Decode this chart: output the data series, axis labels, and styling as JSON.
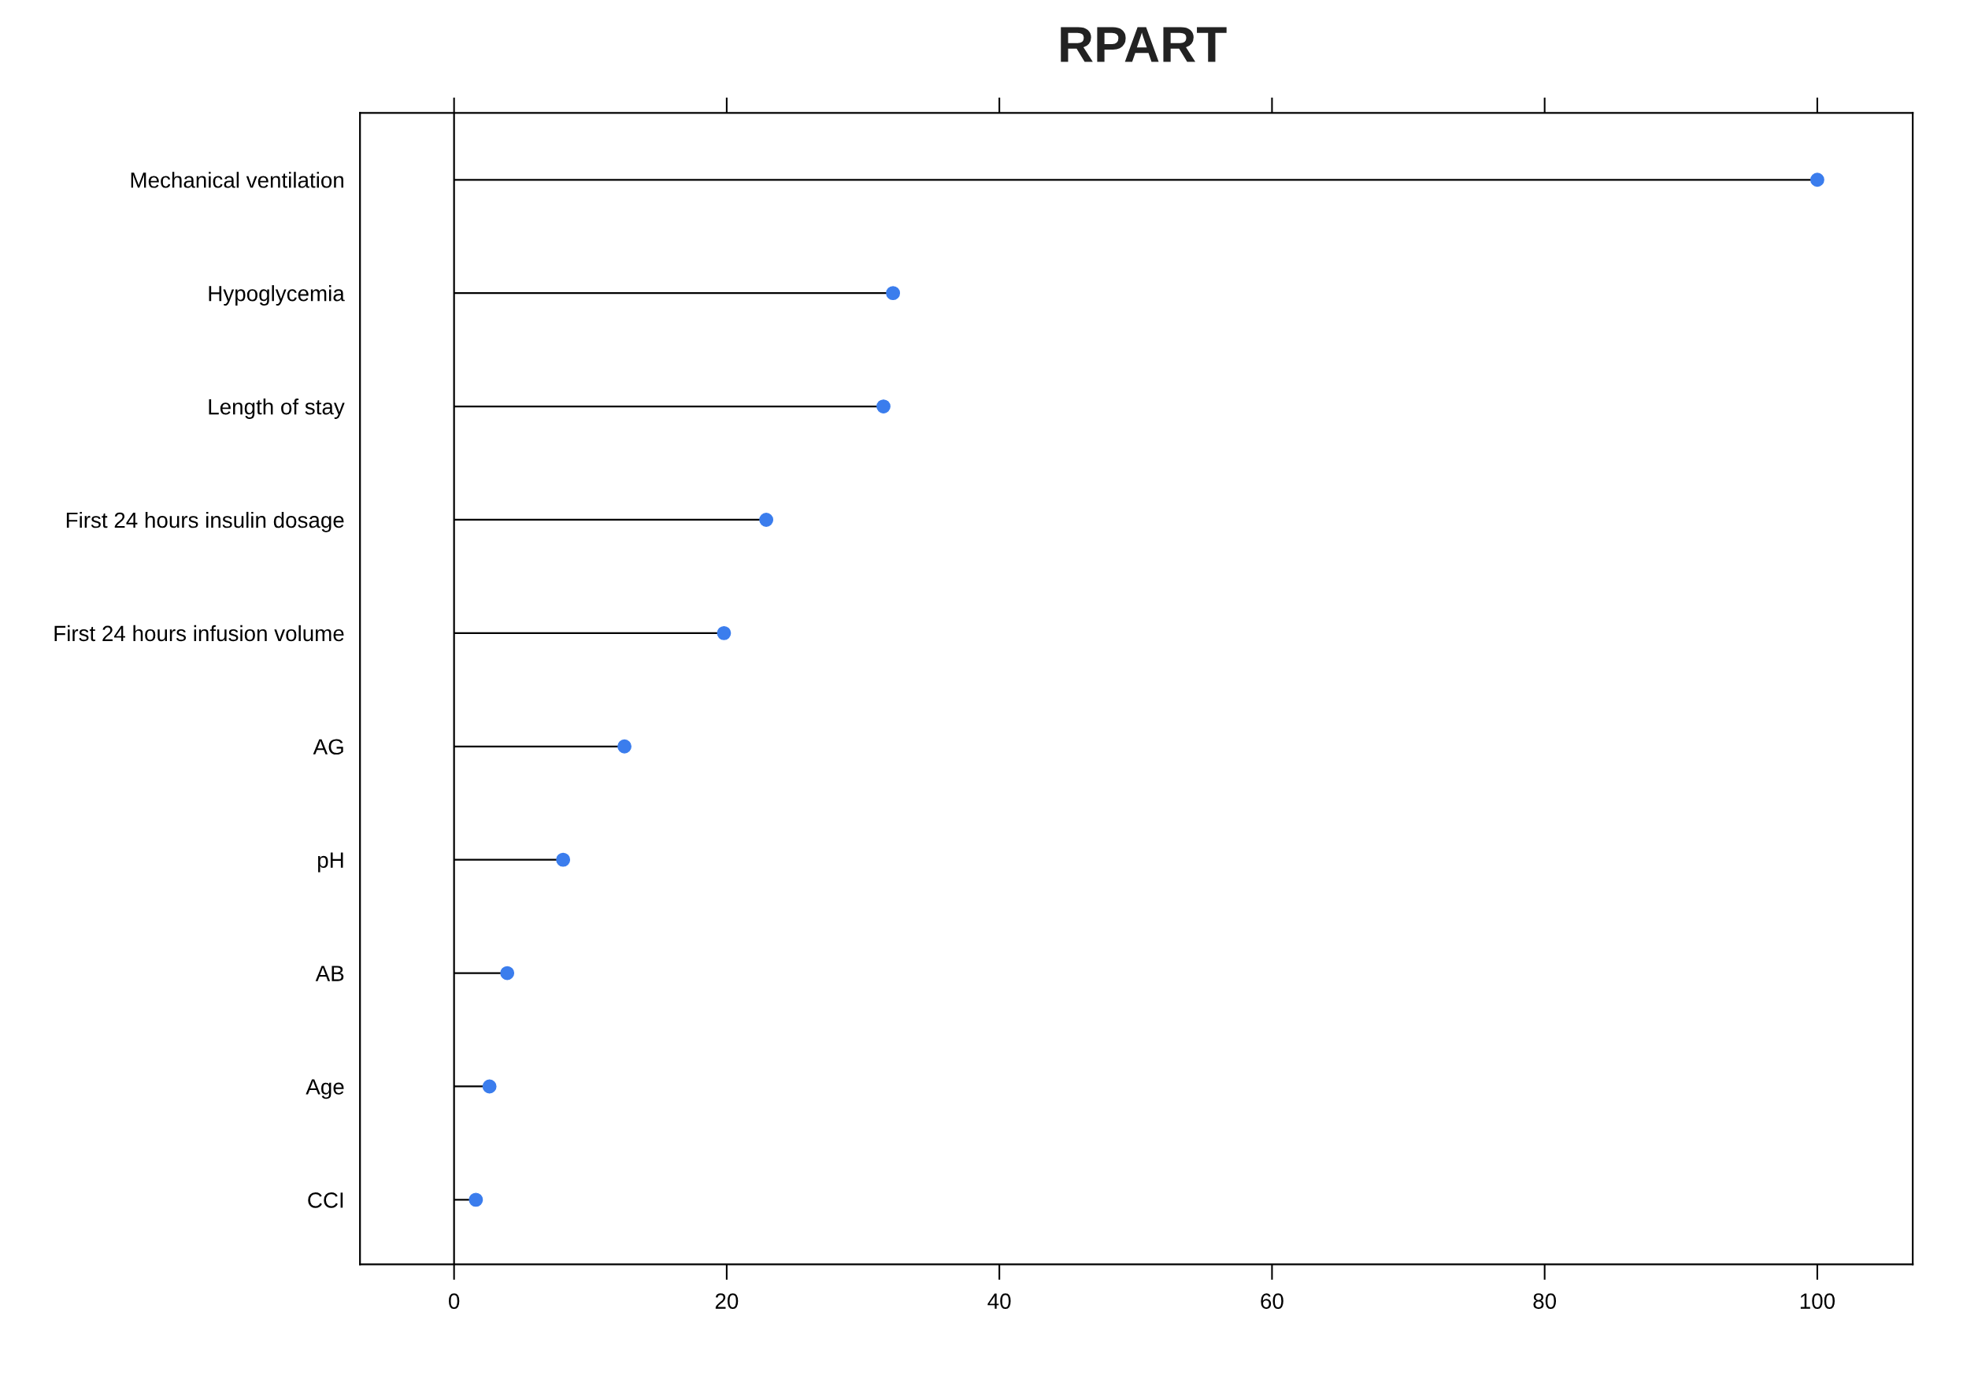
{
  "chart_data": {
    "type": "lollipop",
    "title": "RPART",
    "orientation": "horizontal",
    "categories": [
      "Mechanical ventilation",
      "Hypoglycemia",
      "Length of stay",
      "First 24 hours insulin dosage",
      "First 24 hours infusion volume",
      "AG",
      "pH",
      "AB",
      "Age",
      "CCI"
    ],
    "values": [
      100,
      32.2,
      31.5,
      22.9,
      19.8,
      12.5,
      8.0,
      3.9,
      2.6,
      1.6
    ],
    "color": "#3b7ded",
    "marker": "circle",
    "xlim": [
      -6.9,
      107
    ],
    "xticks": [
      0,
      20,
      40,
      60,
      80,
      100
    ],
    "ref_lines": [
      {
        "axis": "x",
        "value": 0,
        "label": null,
        "color": "#000000"
      }
    ],
    "grid": false,
    "legend": false
  }
}
